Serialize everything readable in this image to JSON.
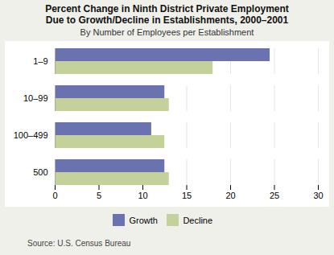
{
  "chart_data": {
    "type": "bar",
    "orientation": "horizontal",
    "title": "Percent Change in Ninth District Private Employment\nDue to Growth/Decline in Establishments, 2000–2001",
    "subtitle": "By Number of Employees per Establishment",
    "source": "Source: U.S. Census Bureau",
    "categories": [
      "1–9",
      "10–99",
      "100–499",
      "500"
    ],
    "series": [
      {
        "name": "Growth",
        "color": "#6b72b0",
        "values": [
          24.5,
          12.5,
          11.0,
          12.5
        ]
      },
      {
        "name": "Decline",
        "color": "#c5d19a",
        "values": [
          18.0,
          13.0,
          12.5,
          13.0
        ]
      }
    ],
    "xlim": [
      0,
      30
    ],
    "xticks": [
      0,
      5,
      10,
      15,
      20,
      25,
      30
    ],
    "grid": true,
    "legend": "bottom"
  }
}
